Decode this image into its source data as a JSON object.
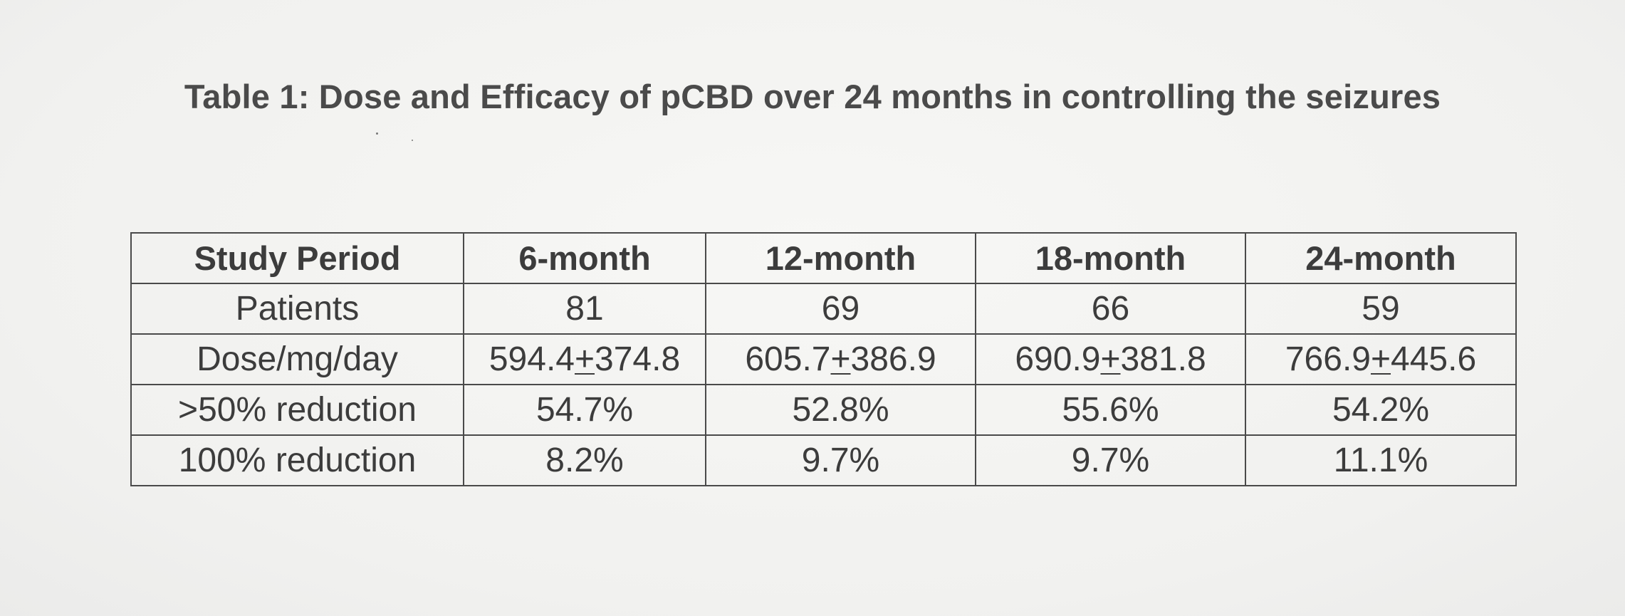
{
  "title": "Table 1:  Dose and Efficacy of pCBD over 24 months in controlling the seizures",
  "table": {
    "headers": [
      "Study Period",
      "6-month",
      "12-month",
      "18-month",
      "24-month"
    ],
    "rows": [
      {
        "label": "Patients",
        "cells": [
          {
            "value": "81"
          },
          {
            "value": "69"
          },
          {
            "value": "66"
          },
          {
            "value": "59"
          }
        ]
      },
      {
        "label": "Dose/mg/day",
        "cells": [
          {
            "mean": "594.4",
            "pm": "+",
            "sd": "374.8"
          },
          {
            "mean": "605.7",
            "pm": "+",
            "sd": "386.9"
          },
          {
            "mean": "690.9",
            "pm": "+",
            "sd": "381.8"
          },
          {
            "mean": "766.9",
            "pm": "+",
            "sd": "445.6"
          }
        ]
      },
      {
        "label": ">50% reduction",
        "cells": [
          {
            "value": "54.7%"
          },
          {
            "value": "52.8%"
          },
          {
            "value": "55.6%"
          },
          {
            "value": "54.2%"
          }
        ]
      },
      {
        "label": "100% reduction",
        "cells": [
          {
            "value": "8.2%"
          },
          {
            "value": "9.7%"
          },
          {
            "value": "9.7%"
          },
          {
            "value": "11.1%"
          }
        ]
      }
    ]
  }
}
